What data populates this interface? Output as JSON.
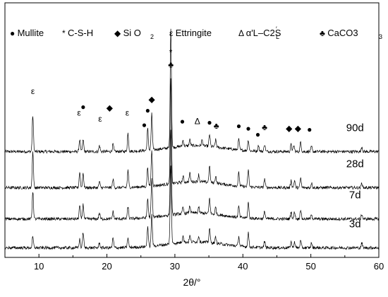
{
  "chart_data": {
    "type": "line",
    "xlabel": "2θ/°",
    "ylabel": "",
    "xlim": [
      5,
      60
    ],
    "xticks": [
      10,
      20,
      30,
      40,
      50,
      60
    ],
    "xtick_labels": [
      "10",
      "20",
      "30",
      "40",
      "50",
      "60"
    ],
    "grid": false,
    "legend_position": "top",
    "legend": [
      {
        "symbol": "●",
        "label": "Mullite"
      },
      {
        "symbol": "*",
        "label": "C-S-H"
      },
      {
        "symbol": "◆",
        "label": "Si O"
      },
      {
        "symbol": "ε",
        "label": "Ettringite"
      },
      {
        "symbol": "Δ",
        "label": "α'L–C2S"
      },
      {
        "symbol": "♣",
        "label": "CaCO3"
      }
    ],
    "series": [
      {
        "name": "90d",
        "baseline": 0.83,
        "peaks": [
          [
            9.1,
            0.3
          ],
          [
            16.0,
            0.1
          ],
          [
            16.5,
            0.1
          ],
          [
            18.9,
            0.05
          ],
          [
            20.9,
            0.06
          ],
          [
            23.1,
            0.15
          ],
          [
            26.0,
            0.18
          ],
          [
            26.6,
            0.3
          ],
          [
            29.4,
            1.0
          ],
          [
            31.2,
            0.05
          ],
          [
            32.2,
            0.05
          ],
          [
            34.0,
            0.05
          ],
          [
            35.1,
            0.1
          ],
          [
            36.0,
            0.06
          ],
          [
            39.4,
            0.09
          ],
          [
            40.8,
            0.09
          ],
          [
            42.3,
            0.05
          ],
          [
            43.2,
            0.06
          ],
          [
            47.1,
            0.06
          ],
          [
            47.5,
            0.05
          ],
          [
            48.5,
            0.08
          ],
          [
            50.1,
            0.04
          ],
          [
            57.5,
            0.04
          ]
        ]
      },
      {
        "name": "28d",
        "baseline": 0.53,
        "peaks": [
          [
            9.1,
            0.3
          ],
          [
            16.0,
            0.13
          ],
          [
            16.5,
            0.12
          ],
          [
            18.9,
            0.05
          ],
          [
            20.9,
            0.07
          ],
          [
            23.1,
            0.14
          ],
          [
            26.0,
            0.16
          ],
          [
            26.6,
            0.3
          ],
          [
            29.4,
            0.87
          ],
          [
            31.2,
            0.05
          ],
          [
            32.2,
            0.07
          ],
          [
            33.5,
            0.06
          ],
          [
            35.1,
            0.14
          ],
          [
            36.0,
            0.06
          ],
          [
            39.4,
            0.11
          ],
          [
            40.8,
            0.14
          ],
          [
            43.2,
            0.07
          ],
          [
            47.1,
            0.06
          ],
          [
            47.6,
            0.06
          ],
          [
            48.5,
            0.08
          ],
          [
            50.1,
            0.04
          ],
          [
            57.5,
            0.04
          ]
        ]
      },
      {
        "name": "7d",
        "baseline": 0.27,
        "peaks": [
          [
            9.1,
            0.23
          ],
          [
            16.0,
            0.11
          ],
          [
            16.5,
            0.12
          ],
          [
            18.9,
            0.05
          ],
          [
            20.9,
            0.06
          ],
          [
            23.1,
            0.1
          ],
          [
            26.0,
            0.16
          ],
          [
            26.6,
            0.32
          ],
          [
            29.4,
            0.72
          ],
          [
            31.2,
            0.05
          ],
          [
            32.2,
            0.06
          ],
          [
            33.5,
            0.05
          ],
          [
            35.1,
            0.13
          ],
          [
            36.0,
            0.06
          ],
          [
            39.4,
            0.09
          ],
          [
            40.8,
            0.13
          ],
          [
            43.2,
            0.06
          ],
          [
            47.1,
            0.06
          ],
          [
            47.6,
            0.06
          ],
          [
            48.5,
            0.08
          ],
          [
            50.1,
            0.04
          ],
          [
            57.5,
            0.04
          ]
        ]
      },
      {
        "name": "3d",
        "baseline": 0.03,
        "peaks": [
          [
            9.1,
            0.09
          ],
          [
            16.0,
            0.07
          ],
          [
            16.5,
            0.13
          ],
          [
            18.9,
            0.04
          ],
          [
            20.9,
            0.08
          ],
          [
            23.1,
            0.08
          ],
          [
            26.0,
            0.17
          ],
          [
            26.6,
            0.26
          ],
          [
            29.4,
            0.66
          ],
          [
            31.2,
            0.06
          ],
          [
            32.2,
            0.05
          ],
          [
            33.5,
            0.05
          ],
          [
            35.1,
            0.12
          ],
          [
            36.0,
            0.05
          ],
          [
            39.4,
            0.08
          ],
          [
            40.8,
            0.12
          ],
          [
            43.2,
            0.05
          ],
          [
            47.1,
            0.05
          ],
          [
            47.6,
            0.05
          ],
          [
            48.5,
            0.06
          ],
          [
            50.1,
            0.04
          ],
          [
            57.5,
            0.04
          ]
        ]
      }
    ],
    "annotations": [
      {
        "x": 9.1,
        "y": 1.31,
        "text": "ε"
      },
      {
        "x": 15.9,
        "y": 1.13,
        "text": "ε"
      },
      {
        "x": 16.5,
        "y": 1.18,
        "text": "●"
      },
      {
        "x": 19.0,
        "y": 1.08,
        "text": "ε"
      },
      {
        "x": 20.4,
        "y": 1.17,
        "text": "◆"
      },
      {
        "x": 23.0,
        "y": 1.13,
        "text": "ε"
      },
      {
        "x": 25.5,
        "y": 1.03,
        "text": "●"
      },
      {
        "x": 26.0,
        "y": 1.15,
        "text": "●"
      },
      {
        "x": 26.6,
        "y": 1.24,
        "text": "◆"
      },
      {
        "x": 29.4,
        "y": 1.63,
        "text": "*"
      },
      {
        "x": 29.4,
        "y": 1.53,
        "text": "♣"
      },
      {
        "x": 31.1,
        "y": 1.06,
        "text": "●"
      },
      {
        "x": 33.3,
        "y": 1.06,
        "text": "Δ"
      },
      {
        "x": 35.1,
        "y": 1.05,
        "text": "●"
      },
      {
        "x": 36.1,
        "y": 1.02,
        "text": "♣"
      },
      {
        "x": 39.4,
        "y": 1.02,
        "text": "●"
      },
      {
        "x": 40.8,
        "y": 1.0,
        "text": "●"
      },
      {
        "x": 42.2,
        "y": 0.95,
        "text": "●"
      },
      {
        "x": 43.2,
        "y": 1.01,
        "text": "♣"
      },
      {
        "x": 46.8,
        "y": 1.0,
        "text": "◆"
      },
      {
        "x": 48.1,
        "y": 1.0,
        "text": "◆"
      },
      {
        "x": 49.8,
        "y": 0.99,
        "text": "●"
      }
    ]
  }
}
